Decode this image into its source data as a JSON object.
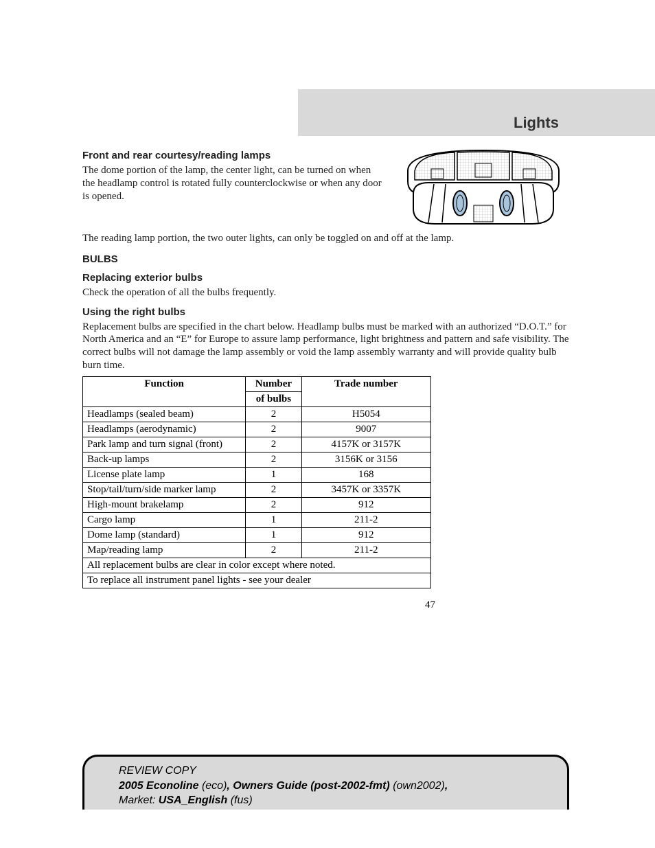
{
  "header": {
    "title": "Lights"
  },
  "sec1": {
    "heading": "Front and rear courtesy/reading lamps",
    "p1": "The dome portion of the lamp, the center light, can be turned on when the headlamp control is rotated fully counterclockwise or when any door is opened.",
    "p2": "The reading lamp portion, the two outer lights, can only be toggled on and off at the lamp."
  },
  "sec2": {
    "heading": "BULBS",
    "sub1": {
      "heading": "Replacing exterior bulbs",
      "p1": "Check the operation of all the bulbs frequently."
    },
    "sub2": {
      "heading": "Using the right bulbs",
      "p1": "Replacement bulbs are specified in the chart below. Headlamp bulbs must be marked with an authorized “D.O.T.” for North America and an “E” for Europe to assure lamp performance, light brightness and pattern and safe visibility. The correct bulbs will not damage the lamp assembly or void the lamp assembly warranty and will provide quality bulb burn time."
    }
  },
  "table": {
    "col1": "Function",
    "col2_a": "Number",
    "col2_b": "of bulbs",
    "col3": "Trade number",
    "rows": [
      {
        "f": "Headlamps (sealed beam)",
        "n": "2",
        "t": "H5054"
      },
      {
        "f": "Headlamps (aerodynamic)",
        "n": "2",
        "t": "9007"
      },
      {
        "f": "Park lamp and turn signal (front)",
        "n": "2",
        "t": "4157K or 3157K"
      },
      {
        "f": "Back-up lamps",
        "n": "2",
        "t": "3156K or 3156"
      },
      {
        "f": "License plate lamp",
        "n": "1",
        "t": "168"
      },
      {
        "f": "Stop/tail/turn/side marker lamp",
        "n": "2",
        "t": "3457K or 3357K"
      },
      {
        "f": "High-mount brakelamp",
        "n": "2",
        "t": "912"
      },
      {
        "f": "Cargo lamp",
        "n": "1",
        "t": "211-2"
      },
      {
        "f": "Dome lamp (standard)",
        "n": "1",
        "t": "912"
      },
      {
        "f": "Map/reading lamp",
        "n": "2",
        "t": "211-2"
      }
    ],
    "note1": "All replacement bulbs are clear in color except where noted.",
    "note2": "To replace all instrument panel lights - see your dealer"
  },
  "pagenum": "47",
  "footer": {
    "l1a": "REVIEW COPY",
    "l2a": "2005 Econoline ",
    "l2b": "(eco)",
    "l2c": ", ",
    "l2d": "Owners Guide (post-2002-fmt) ",
    "l2e": "(own2002)",
    "l2f": ",",
    "l3a": "Market: ",
    "l3b": "USA_English ",
    "l3c": "(fus)"
  },
  "figure": {
    "button_fill": "#a8c5dd",
    "stroke": "#000000",
    "grid": "#999999"
  }
}
